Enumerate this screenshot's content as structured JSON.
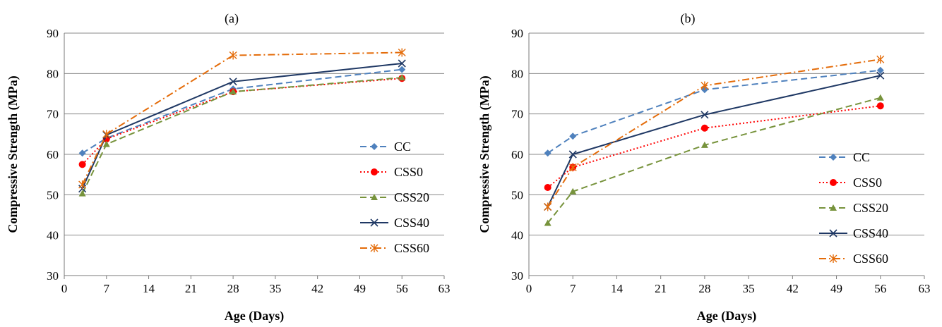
{
  "chart_data": [
    {
      "type": "line",
      "title": "(a)",
      "xlabel": "Age (Days)",
      "ylabel": "Compressive Strength (MPa)",
      "xlim": [
        0,
        63
      ],
      "ylim": [
        30,
        90
      ],
      "xticks": [
        0,
        7,
        14,
        21,
        28,
        35,
        42,
        49,
        56,
        63
      ],
      "xtick_labels": [
        "0",
        "7",
        "14",
        "21",
        "28",
        "35",
        "42",
        "49",
        "56",
        "63"
      ],
      "yticks": [
        30,
        40,
        50,
        60,
        70,
        80,
        90
      ],
      "ytick_labels": [
        "30",
        "40",
        "50",
        "60",
        "70",
        "80",
        "90"
      ],
      "grid": "horizontal",
      "legend_position": "right",
      "x": [
        3,
        7,
        28,
        56
      ],
      "series": [
        {
          "name": "CC",
          "values": [
            60.3,
            64.0,
            76.2,
            81.0
          ],
          "color": "#4f81bd",
          "dash": "dashed",
          "marker": "diamond"
        },
        {
          "name": "CSS0",
          "values": [
            57.5,
            63.8,
            75.5,
            78.8
          ],
          "color": "#ff0000",
          "dash": "dotted",
          "marker": "circle"
        },
        {
          "name": "CSS20",
          "values": [
            50.3,
            62.5,
            75.5,
            79.0
          ],
          "color": "#77933c",
          "dash": "dashed",
          "marker": "triangle"
        },
        {
          "name": "CSS40",
          "values": [
            51.5,
            64.8,
            78.0,
            82.5
          ],
          "color": "#1f3864",
          "dash": "solid",
          "marker": "x"
        },
        {
          "name": "CSS60",
          "values": [
            52.5,
            65.0,
            84.5,
            85.2
          ],
          "color": "#e46c0a",
          "dash": "dashdot",
          "marker": "star"
        }
      ]
    },
    {
      "type": "line",
      "title": "(b)",
      "xlabel": "Age (Days)",
      "ylabel": "Compressive Strength (MPa)",
      "xlim": [
        0,
        63
      ],
      "ylim": [
        30,
        90
      ],
      "xticks": [
        0,
        7,
        14,
        21,
        28,
        35,
        42,
        49,
        56,
        63
      ],
      "xtick_labels": [
        "0",
        "7",
        "14",
        "21",
        "28",
        "35",
        "42",
        "49",
        "56",
        "63"
      ],
      "yticks": [
        30,
        40,
        50,
        60,
        70,
        80,
        90
      ],
      "ytick_labels": [
        "30",
        "40",
        "50",
        "60",
        "70",
        "80",
        "90"
      ],
      "grid": "horizontal",
      "legend_position": "right",
      "x": [
        3,
        7,
        28,
        56
      ],
      "series": [
        {
          "name": "CC",
          "values": [
            60.3,
            64.5,
            76.0,
            80.8
          ],
          "color": "#4f81bd",
          "dash": "dashed",
          "marker": "diamond"
        },
        {
          "name": "CSS0",
          "values": [
            51.8,
            56.8,
            66.5,
            72.0
          ],
          "color": "#ff0000",
          "dash": "dotted",
          "marker": "circle"
        },
        {
          "name": "CSS20",
          "values": [
            43.0,
            50.8,
            62.3,
            74.0
          ],
          "color": "#77933c",
          "dash": "dashed",
          "marker": "triangle"
        },
        {
          "name": "CSS40",
          "values": [
            47.0,
            60.0,
            69.8,
            79.5
          ],
          "color": "#1f3864",
          "dash": "solid",
          "marker": "x"
        },
        {
          "name": "CSS60",
          "values": [
            47.0,
            56.8,
            77.0,
            83.5
          ],
          "color": "#e46c0a",
          "dash": "dashdot",
          "marker": "star"
        }
      ]
    }
  ]
}
